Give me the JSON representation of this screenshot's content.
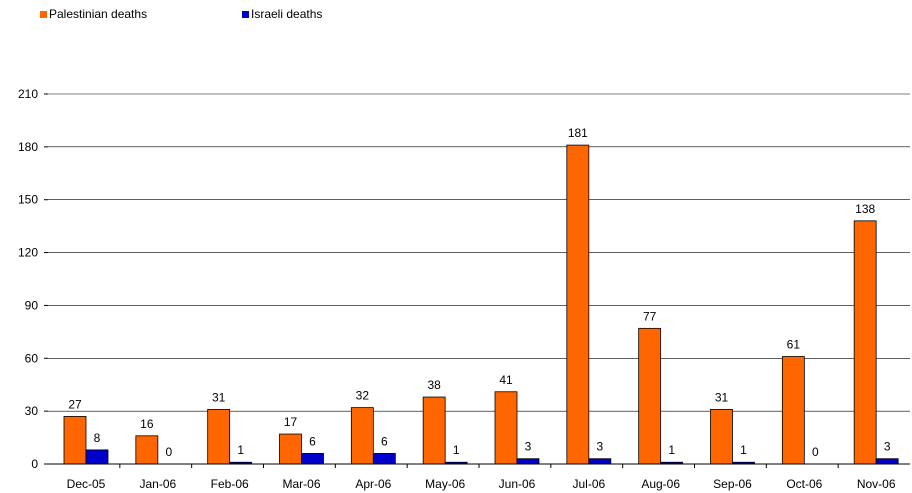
{
  "chart_data": {
    "type": "bar",
    "categories": [
      "Dec-05",
      "Jan-06",
      "Feb-06",
      "Mar-06",
      "Apr-06",
      "May-06",
      "Jun-06",
      "Jul-06",
      "Aug-06",
      "Sep-06",
      "Oct-06",
      "Nov-06"
    ],
    "series": [
      {
        "name": "Palestinian deaths",
        "color": "#FF6600",
        "values": [
          27,
          16,
          31,
          17,
          32,
          38,
          41,
          181,
          77,
          31,
          61,
          138
        ]
      },
      {
        "name": "Israeli deaths",
        "color": "#0000CC",
        "values": [
          8,
          0,
          1,
          6,
          6,
          1,
          3,
          3,
          1,
          1,
          0,
          3
        ]
      }
    ],
    "ylim": [
      0,
      210
    ],
    "yticks": [
      0,
      30,
      60,
      90,
      120,
      150,
      180,
      210
    ],
    "grid": true,
    "legend_position": "top-left"
  }
}
